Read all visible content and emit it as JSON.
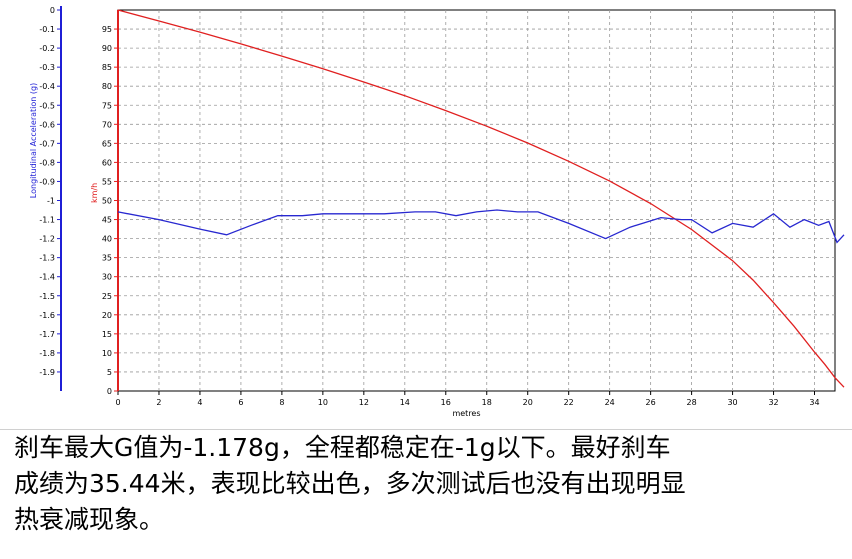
{
  "chart_data": {
    "type": "line",
    "xlabel": "metres",
    "xlim": [
      0,
      35
    ],
    "x_ticks": [
      0,
      2,
      4,
      6,
      8,
      10,
      12,
      14,
      16,
      18,
      20,
      22,
      24,
      26,
      28,
      30,
      32,
      34
    ],
    "axes": {
      "left": {
        "label": "Longitudinal Acceleration (g)",
        "color": "#1f1fd6",
        "ylim": [
          -2.0,
          0
        ],
        "ticks": [
          "0",
          "-0.1",
          "-0.2",
          "-0.3",
          "-0.4",
          "-0.5",
          "-0.6",
          "-0.7",
          "-0.8",
          "-0.9",
          "-1",
          "-1.1",
          "-1.2",
          "-1.3",
          "-1.4",
          "-1.5",
          "-1.6",
          "-1.7",
          "-1.8",
          "-1.9"
        ]
      },
      "right": {
        "label": "km/h",
        "color": "#e02020",
        "ylim": [
          0,
          100
        ],
        "ticks": [
          "0",
          "5",
          "10",
          "15",
          "20",
          "25",
          "30",
          "35",
          "40",
          "45",
          "50",
          "55",
          "60",
          "65",
          "70",
          "75",
          "80",
          "85",
          "90",
          "95"
        ]
      }
    },
    "grid": true,
    "series": [
      {
        "axis": "right",
        "color": "#e02020",
        "x": [
          0,
          2,
          4,
          6,
          8,
          10,
          12,
          14,
          16,
          18,
          20,
          22,
          24,
          26,
          28,
          30,
          31,
          32,
          33,
          34,
          34.5,
          35.0,
          35.44
        ],
        "y": [
          100,
          97.1,
          94.2,
          91.1,
          87.9,
          84.6,
          81.1,
          77.5,
          73.6,
          69.5,
          65.1,
          60.3,
          55.1,
          49.2,
          42.4,
          34.2,
          29.1,
          23.2,
          17.0,
          10.2,
          7.0,
          3.5,
          1.0
        ]
      },
      {
        "axis": "left",
        "color": "#2828d0",
        "x": [
          0,
          2,
          4,
          5.3,
          6.5,
          7.8,
          9,
          10,
          12,
          13,
          14.5,
          15.5,
          16.5,
          17.5,
          18.5,
          19.5,
          20.5,
          22,
          23.8,
          25,
          26.5,
          27.5,
          28,
          29,
          30,
          31,
          32,
          32.8,
          33.5,
          34.2,
          34.7,
          35.1,
          35.44
        ],
        "y": [
          -1.06,
          -1.1,
          -1.15,
          -1.18,
          -1.13,
          -1.08,
          -1.08,
          -1.07,
          -1.07,
          -1.07,
          -1.06,
          -1.06,
          -1.08,
          -1.06,
          -1.05,
          -1.06,
          -1.06,
          -1.12,
          -1.2,
          -1.14,
          -1.09,
          -1.1,
          -1.1,
          -1.17,
          -1.12,
          -1.14,
          -1.07,
          -1.14,
          -1.1,
          -1.13,
          -1.11,
          -1.22,
          -1.18
        ]
      }
    ]
  },
  "caption": {
    "line1": "刹车最大G值为-1.178g，全程都稳定在-1g以下。最好刹车",
    "line2": "成绩为35.44米，表现比较出色，多次测试后也没有出现明显",
    "line3": "热衰减现象。"
  }
}
